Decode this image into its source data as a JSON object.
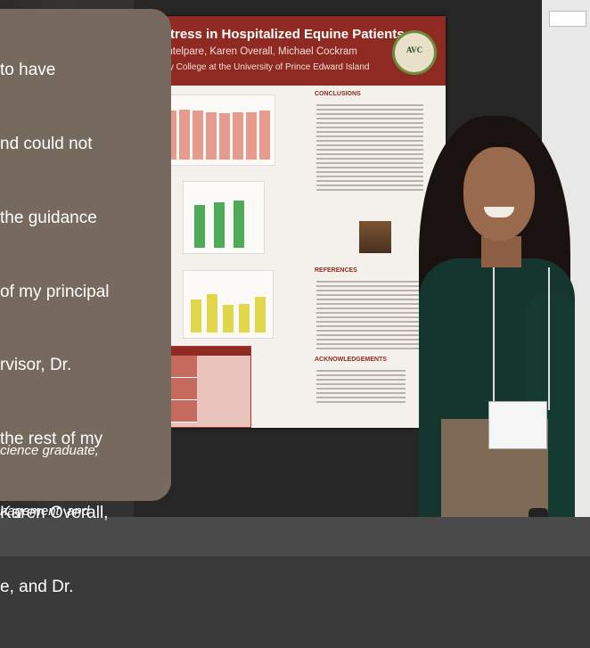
{
  "quote_lines": [
    "to have",
    "nd could not",
    "the guidance",
    "of my principal",
    "rvisor, Dr.",
    "the rest of my",
    "Karen Overall,",
    "e, and Dr."
  ],
  "attribution_lines": [
    "cience graduate,",
    "nagement, and"
  ],
  "poster": {
    "title": "Stress in Hospitalized Equine Patients",
    "authors": "ontelpare, Karen Overall, Michael Cockram",
    "institution": "ary College at the University of Prince Edward Island",
    "sections": [
      "CONCLUSIONS",
      "REFERENCES",
      "ACKNOWLEDGEMENTS"
    ],
    "bar_values_top": [
      88,
      90,
      88,
      86,
      84,
      85,
      86,
      88
    ],
    "bar_values_mid": [
      70,
      75,
      78
    ],
    "bar_values_bot": [
      60,
      70,
      50,
      52,
      65
    ]
  },
  "colors": {
    "overlay": "#76695d",
    "poster_header": "#8e2a22",
    "bar_pink": "#e79a8e",
    "bar_green": "#4faa58",
    "bar_yellow": "#e0d84a"
  }
}
